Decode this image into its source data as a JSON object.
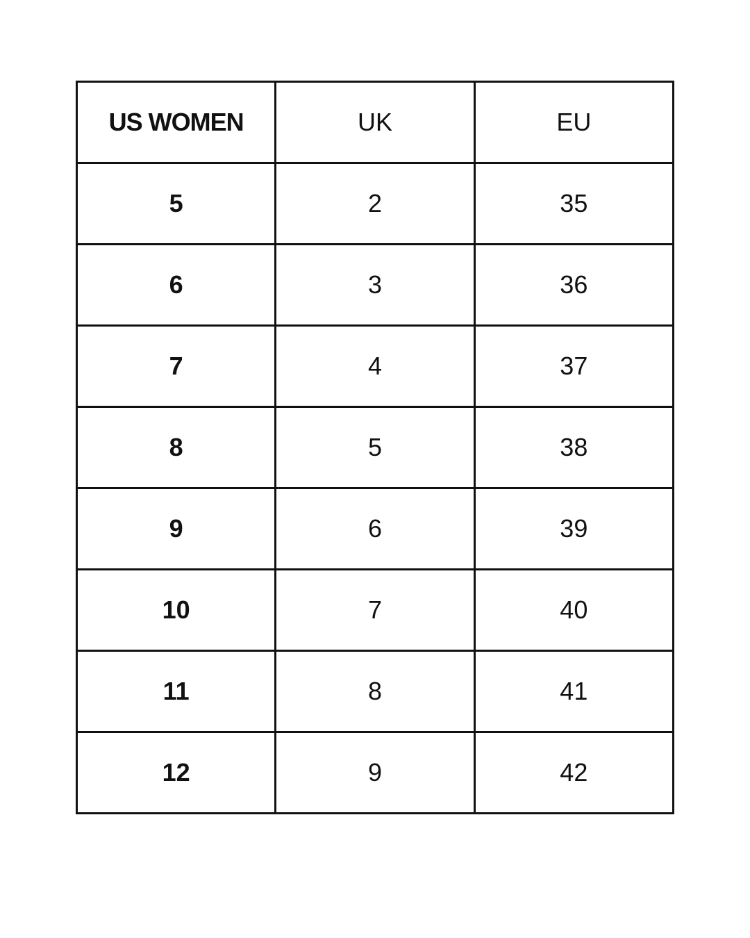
{
  "table": {
    "header": [
      "US WOMEN",
      "UK",
      "EU"
    ],
    "rows": [
      [
        5,
        2,
        35
      ],
      [
        6,
        3,
        36
      ],
      [
        7,
        4,
        37
      ],
      [
        8,
        5,
        38
      ],
      [
        9,
        6,
        39
      ],
      [
        10,
        7,
        40
      ],
      [
        11,
        8,
        41
      ],
      [
        12,
        9,
        42
      ]
    ]
  }
}
